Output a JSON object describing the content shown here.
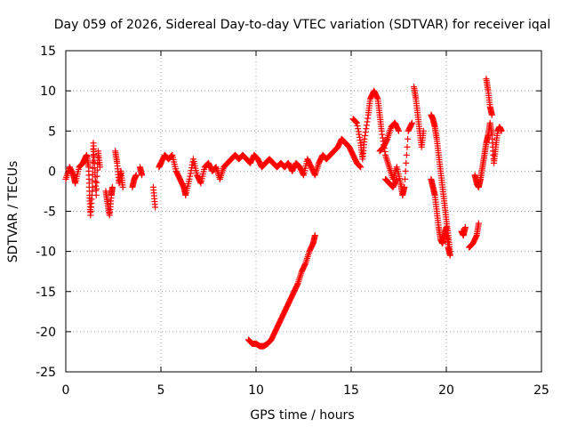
{
  "chart_data": {
    "type": "scatter",
    "title": "Day 059 of 2026, Sidereal Day-to-day VTEC variation (SDTVAR) for receiver iqal",
    "xlabel": "GPS time / hours",
    "ylabel": "SDTVAR / TECUs",
    "xlim": [
      0,
      25
    ],
    "ylim": [
      -25,
      15
    ],
    "xticks": [
      0,
      5,
      10,
      15,
      20,
      25
    ],
    "yticks": [
      -25,
      -20,
      -15,
      -10,
      -5,
      0,
      5,
      10,
      15
    ],
    "grid": true,
    "marker": "+",
    "color": "#ff0000",
    "series": [
      {
        "name": "SDTVAR",
        "segments": [
          [
            [
              0.0,
              -1.0
            ],
            [
              0.2,
              0.5
            ],
            [
              0.4,
              -0.5
            ],
            [
              0.5,
              -1.5
            ],
            [
              0.7,
              0.5
            ],
            [
              0.9,
              1.0
            ],
            [
              1.0,
              1.5
            ],
            [
              1.1,
              2.0
            ],
            [
              1.2,
              0.5
            ],
            [
              1.25,
              -3.0
            ],
            [
              1.3,
              -5.5
            ],
            [
              1.4,
              -2.0
            ],
            [
              1.45,
              3.5
            ],
            [
              1.5,
              1.0
            ],
            [
              1.6,
              -3.0
            ],
            [
              1.7,
              2.5
            ],
            [
              1.8,
              0.5
            ]
          ],
          [
            [
              2.1,
              -2.5
            ],
            [
              2.2,
              -4.0
            ],
            [
              2.3,
              -5.5
            ],
            [
              2.4,
              -3.0
            ],
            [
              2.45,
              -2.0
            ]
          ],
          [
            [
              2.6,
              2.5
            ],
            [
              2.7,
              1.0
            ],
            [
              2.8,
              -1.5
            ],
            [
              2.9,
              0.0
            ],
            [
              3.0,
              -2.0
            ]
          ],
          [
            [
              3.5,
              -2.0
            ],
            [
              3.6,
              -1.0
            ],
            [
              3.7,
              -0.5
            ]
          ],
          [
            [
              3.9,
              0.5
            ],
            [
              4.0,
              -0.5
            ]
          ],
          [
            [
              4.6,
              -2.0
            ],
            [
              4.7,
              -4.5
            ]
          ],
          [
            [
              4.9,
              0.5
            ],
            [
              5.0,
              1.0
            ],
            [
              5.2,
              2.0
            ],
            [
              5.4,
              1.5
            ],
            [
              5.6,
              2.0
            ],
            [
              5.8,
              0.0
            ],
            [
              6.0,
              -1.0
            ],
            [
              6.2,
              -2.0
            ],
            [
              6.3,
              -3.0
            ],
            [
              6.5,
              -1.0
            ],
            [
              6.7,
              1.5
            ],
            [
              6.9,
              -0.5
            ],
            [
              7.1,
              -1.5
            ],
            [
              7.3,
              0.5
            ],
            [
              7.5,
              1.0
            ],
            [
              7.7,
              0.0
            ],
            [
              7.9,
              0.5
            ],
            [
              8.1,
              -1.0
            ],
            [
              8.3,
              0.5
            ],
            [
              8.5,
              1.0
            ],
            [
              8.7,
              1.5
            ],
            [
              8.9,
              2.0
            ],
            [
              9.1,
              1.5
            ],
            [
              9.3,
              2.0
            ],
            [
              9.5,
              1.5
            ],
            [
              9.7,
              1.0
            ],
            [
              9.9,
              2.0
            ],
            [
              10.1,
              1.5
            ],
            [
              10.3,
              0.5
            ],
            [
              10.5,
              1.0
            ],
            [
              10.7,
              1.5
            ],
            [
              10.9,
              1.0
            ],
            [
              11.1,
              0.5
            ],
            [
              11.3,
              1.0
            ],
            [
              11.5,
              0.5
            ],
            [
              11.7,
              1.0
            ],
            [
              11.9,
              0.0
            ],
            [
              12.1,
              1.0
            ],
            [
              12.3,
              0.5
            ],
            [
              12.5,
              -0.5
            ],
            [
              12.7,
              1.5
            ],
            [
              12.9,
              0.5
            ],
            [
              13.1,
              -0.5
            ],
            [
              13.3,
              1.0
            ],
            [
              13.5,
              2.0
            ],
            [
              13.7,
              1.5
            ],
            [
              13.9,
              2.0
            ],
            [
              14.1,
              2.5
            ],
            [
              14.3,
              3.0
            ],
            [
              14.5,
              4.0
            ],
            [
              14.7,
              3.5
            ],
            [
              14.9,
              3.0
            ],
            [
              15.1,
              2.0
            ],
            [
              15.3,
              1.0
            ],
            [
              15.5,
              0.5
            ]
          ],
          [
            [
              9.6,
              -21.0
            ],
            [
              9.8,
              -21.5
            ],
            [
              10.0,
              -21.5
            ],
            [
              10.2,
              -21.8
            ],
            [
              10.4,
              -21.8
            ],
            [
              10.6,
              -21.5
            ],
            [
              10.8,
              -21.0
            ],
            [
              11.0,
              -20.0
            ],
            [
              11.2,
              -19.0
            ],
            [
              11.4,
              -18.0
            ],
            [
              11.6,
              -17.0
            ],
            [
              11.8,
              -16.0
            ],
            [
              12.0,
              -15.0
            ],
            [
              12.2,
              -14.0
            ],
            [
              12.4,
              -12.5
            ],
            [
              12.6,
              -11.5
            ],
            [
              12.8,
              -10.0
            ],
            [
              13.0,
              -9.0
            ],
            [
              13.1,
              -8.0
            ]
          ],
          [
            [
              15.1,
              6.5
            ],
            [
              15.3,
              6.0
            ],
            [
              15.5,
              3.5
            ],
            [
              15.6,
              1.5
            ],
            [
              15.7,
              4.0
            ],
            [
              15.9,
              7.0
            ],
            [
              16.0,
              9.0
            ],
            [
              16.2,
              10.0
            ],
            [
              16.4,
              9.0
            ],
            [
              16.5,
              7.0
            ],
            [
              16.6,
              5.0
            ],
            [
              16.8,
              2.0
            ],
            [
              17.0,
              0.5
            ],
            [
              17.2,
              -1.0
            ],
            [
              17.4,
              0.5
            ],
            [
              17.6,
              -1.5
            ],
            [
              17.7,
              -3.0
            ],
            [
              17.8,
              -2.0
            ],
            [
              18.0,
              5.0
            ],
            [
              18.2,
              6.0
            ]
          ],
          [
            [
              16.5,
              2.5
            ],
            [
              16.7,
              3.0
            ],
            [
              16.9,
              4.0
            ],
            [
              17.1,
              5.5
            ],
            [
              17.3,
              6.0
            ],
            [
              17.5,
              5.0
            ]
          ],
          [
            [
              16.8,
              -1.0
            ],
            [
              17.0,
              -1.5
            ],
            [
              17.2,
              -2.0
            ],
            [
              17.4,
              -1.0
            ]
          ],
          [
            [
              18.3,
              10.5
            ],
            [
              18.4,
              9.0
            ],
            [
              18.5,
              7.0
            ],
            [
              18.6,
              5.0
            ],
            [
              18.7,
              3.0
            ],
            [
              18.8,
              5.0
            ]
          ],
          [
            [
              19.2,
              7.0
            ],
            [
              19.3,
              6.5
            ],
            [
              19.4,
              5.5
            ],
            [
              19.5,
              4.0
            ],
            [
              19.6,
              2.0
            ],
            [
              19.7,
              0.0
            ],
            [
              19.8,
              -2.0
            ],
            [
              19.9,
              -4.0
            ],
            [
              20.0,
              -6.0
            ],
            [
              20.1,
              -8.0
            ],
            [
              20.2,
              -10.0
            ]
          ],
          [
            [
              19.2,
              -1.0
            ],
            [
              19.3,
              -2.0
            ],
            [
              19.4,
              -3.0
            ],
            [
              19.5,
              -5.0
            ],
            [
              19.6,
              -7.0
            ],
            [
              19.7,
              -8.5
            ],
            [
              19.8,
              -9.0
            ],
            [
              19.9,
              -8.0
            ],
            [
              20.0,
              -7.0
            ],
            [
              20.1,
              -9.5
            ],
            [
              20.2,
              -10.5
            ]
          ],
          [
            [
              20.8,
              -7.5
            ],
            [
              20.9,
              -8.0
            ],
            [
              21.0,
              -7.0
            ]
          ],
          [
            [
              21.2,
              -9.5
            ],
            [
              21.4,
              -9.0
            ],
            [
              21.6,
              -8.0
            ],
            [
              21.7,
              -6.5
            ]
          ],
          [
            [
              21.5,
              -0.5
            ],
            [
              21.6,
              -1.5
            ],
            [
              21.7,
              -2.0
            ],
            [
              21.8,
              -1.0
            ],
            [
              21.9,
              0.5
            ],
            [
              22.0,
              2.0
            ],
            [
              22.1,
              3.5
            ],
            [
              22.2,
              4.5
            ],
            [
              22.3,
              6.0
            ],
            [
              22.4,
              4.5
            ],
            [
              22.5,
              1.0
            ],
            [
              22.6,
              3.0
            ],
            [
              22.7,
              5.0
            ],
            [
              22.8,
              5.5
            ],
            [
              22.9,
              5.0
            ]
          ],
          [
            [
              22.1,
              11.5
            ],
            [
              22.2,
              10.0
            ],
            [
              22.3,
              8.0
            ],
            [
              22.4,
              7.0
            ]
          ]
        ]
      }
    ]
  }
}
